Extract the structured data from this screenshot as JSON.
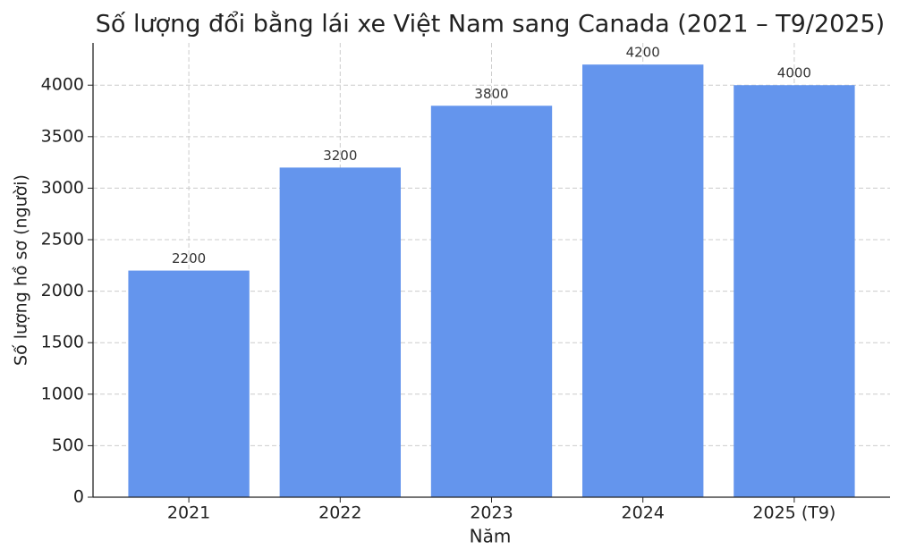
{
  "chart_data": {
    "type": "bar",
    "title": "Số lượng đổi bằng lái xe Việt Nam sang Canada (2021 – T9/2025)",
    "x_label": "Năm",
    "y_label": "Số lượng hồ sơ (người)",
    "categories": [
      "2021",
      "2022",
      "2023",
      "2024",
      "2025 (T9)"
    ],
    "values": [
      2200,
      3200,
      3800,
      4200,
      4000
    ],
    "color": "#6495ed",
    "ylim": [
      0,
      4410
    ],
    "yticks": [
      0,
      500,
      1000,
      1500,
      2000,
      2500,
      3000,
      3500,
      4000
    ],
    "grid": true
  }
}
